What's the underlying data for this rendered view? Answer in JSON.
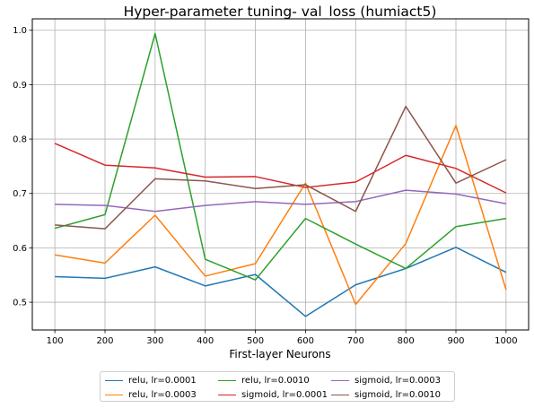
{
  "chart_data": {
    "type": "line",
    "title": "Hyper-parameter tuning- val_loss (humiact5)",
    "xlabel": "First-layer Neurons",
    "ylabel": "",
    "x": [
      100,
      200,
      300,
      400,
      500,
      600,
      700,
      800,
      900,
      1000
    ],
    "xticks": [
      "100",
      "200",
      "300",
      "400",
      "500",
      "600",
      "700",
      "800",
      "900",
      "1000"
    ],
    "yticks": [
      0.5,
      0.6,
      0.7,
      0.8,
      0.9,
      1.0
    ],
    "ytick_labels": [
      "0.5",
      "0.6",
      "0.7",
      "0.8",
      "0.9",
      "1.0"
    ],
    "xlim": [
      55,
      1045
    ],
    "ylim": [
      0.449,
      1.021
    ],
    "grid": true,
    "legend_position": "bottom-center",
    "series": [
      {
        "name": "relu, lr=0.0001",
        "color": "#1f77b4",
        "values": [
          0.547,
          0.544,
          0.565,
          0.53,
          0.551,
          0.474,
          0.532,
          0.562,
          0.601,
          0.555
        ]
      },
      {
        "name": "relu, lr=0.0003",
        "color": "#ff7f0e",
        "values": [
          0.587,
          0.572,
          0.66,
          0.548,
          0.571,
          0.719,
          0.496,
          0.608,
          0.825,
          0.523
        ]
      },
      {
        "name": "relu, lr=0.0010",
        "color": "#2ca02c",
        "values": [
          0.636,
          0.661,
          0.994,
          0.579,
          0.541,
          0.654,
          0.607,
          0.562,
          0.639,
          0.654
        ]
      },
      {
        "name": "sigmoid, lr=0.0001",
        "color": "#d62728",
        "values": [
          0.792,
          0.752,
          0.747,
          0.73,
          0.731,
          0.711,
          0.721,
          0.77,
          0.746,
          0.701
        ]
      },
      {
        "name": "sigmoid, lr=0.0003",
        "color": "#9467bd",
        "values": [
          0.68,
          0.678,
          0.667,
          0.678,
          0.685,
          0.68,
          0.685,
          0.706,
          0.699,
          0.681
        ]
      },
      {
        "name": "sigmoid, lr=0.0010",
        "color": "#8c564b",
        "values": [
          0.642,
          0.635,
          0.727,
          0.723,
          0.709,
          0.716,
          0.667,
          0.86,
          0.719,
          0.762
        ]
      }
    ]
  }
}
